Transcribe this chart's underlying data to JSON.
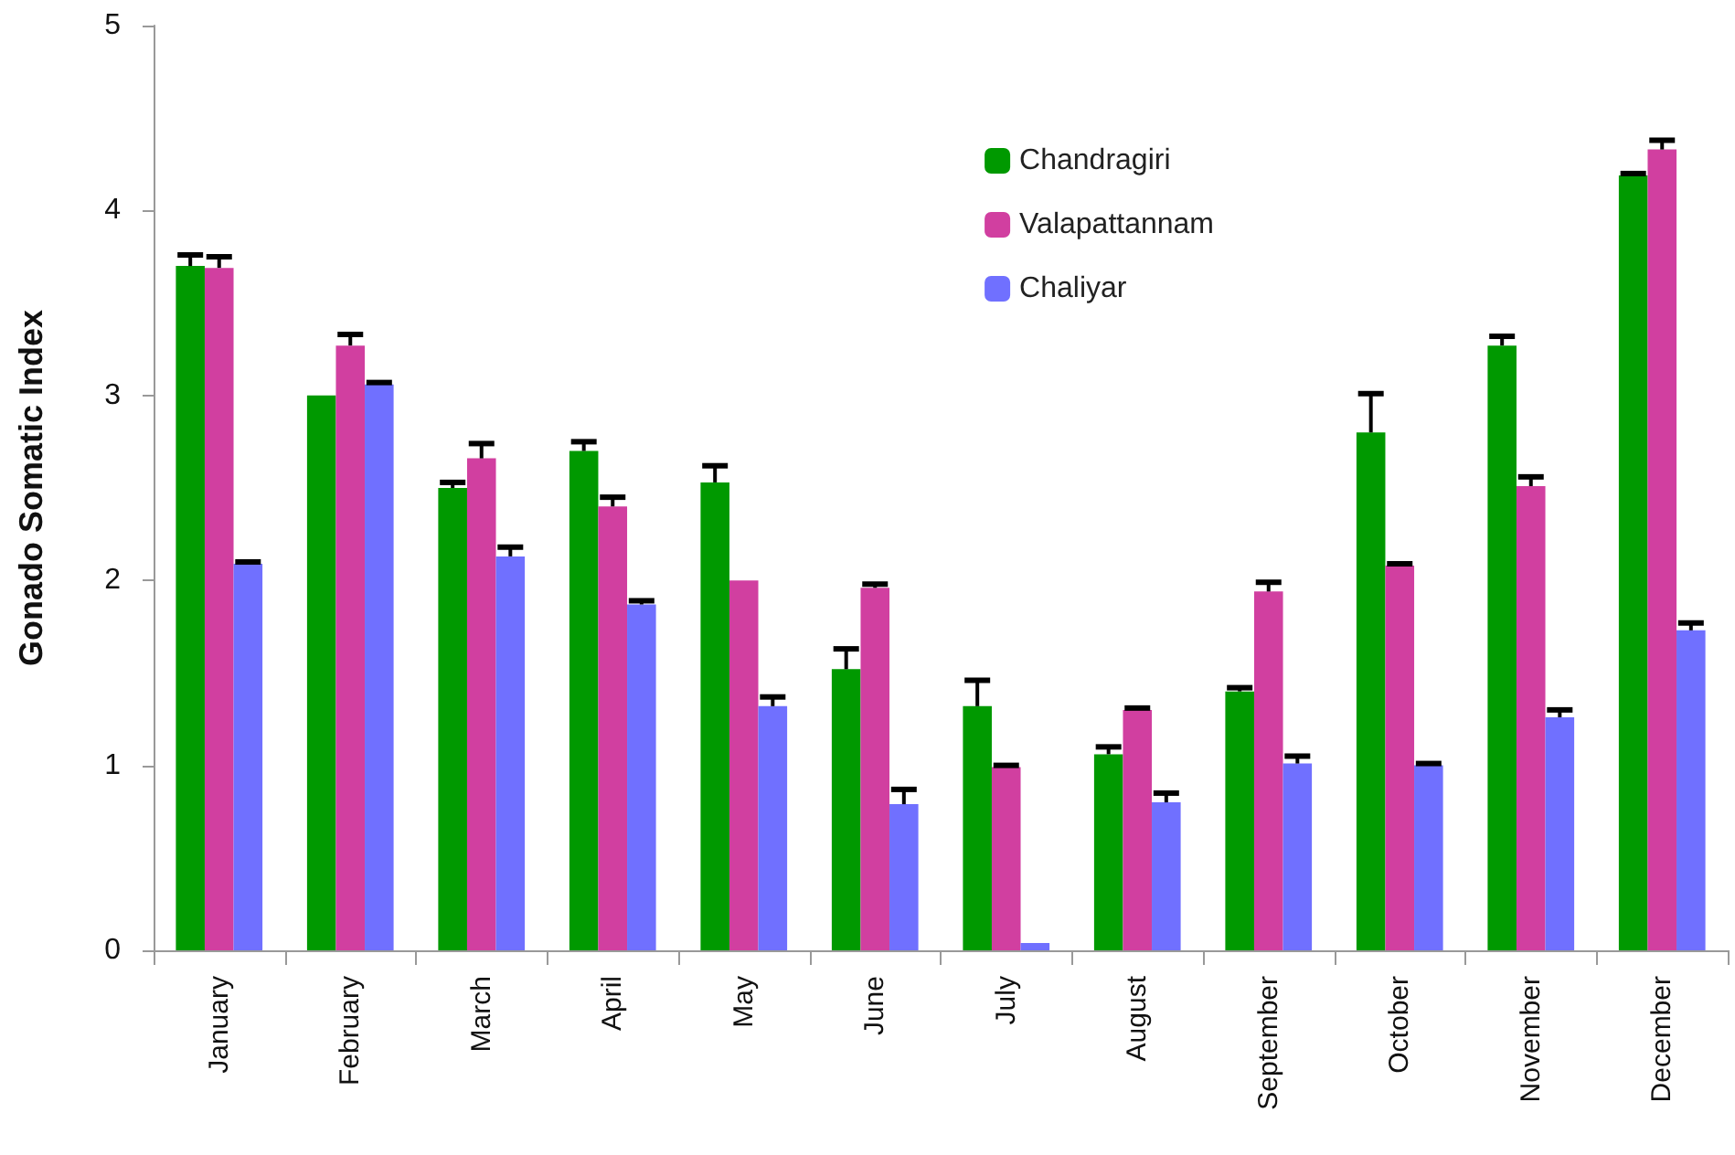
{
  "chart_data": {
    "type": "bar",
    "ylabel": "Gonado Somatic Index",
    "categories": [
      "January",
      "February",
      "March",
      "April",
      "May",
      "June",
      "July",
      "August",
      "September",
      "October",
      "November",
      "December"
    ],
    "series": [
      {
        "name": "Chandragiri",
        "color": "#009900",
        "values": [
          3.7,
          3.0,
          2.5,
          2.7,
          2.53,
          1.52,
          1.32,
          1.06,
          1.4,
          2.8,
          3.27,
          4.19
        ],
        "errors": [
          [
            3.7,
            3.76
          ],
          null,
          [
            2.5,
            2.53
          ],
          [
            2.7,
            2.75
          ],
          [
            2.53,
            2.62
          ],
          [
            1.52,
            1.63
          ],
          [
            1.32,
            1.46
          ],
          [
            1.06,
            1.1
          ],
          [
            1.4,
            1.42
          ],
          [
            2.8,
            3.01
          ],
          [
            3.27,
            3.32
          ],
          [
            4.19,
            4.2
          ]
        ]
      },
      {
        "name": "Valapattannam",
        "color": "#d13fa0",
        "values": [
          3.69,
          3.27,
          2.66,
          2.4,
          2.0,
          1.96,
          0.99,
          1.3,
          1.94,
          2.08,
          2.51,
          4.33
        ],
        "errors": [
          [
            3.69,
            3.75
          ],
          [
            3.27,
            3.33
          ],
          [
            2.66,
            2.74
          ],
          [
            2.4,
            2.45
          ],
          null,
          [
            1.96,
            1.98
          ],
          [
            0.99,
            1.0
          ],
          [
            1.3,
            1.31
          ],
          [
            1.94,
            1.99
          ],
          [
            2.08,
            2.09
          ],
          [
            2.51,
            2.56
          ],
          [
            4.33,
            4.38
          ]
        ]
      },
      {
        "name": "Chaliyar",
        "color": "#7070ff",
        "values": [
          2.09,
          3.06,
          2.13,
          1.87,
          1.32,
          0.79,
          0.04,
          0.8,
          1.01,
          1.0,
          1.26,
          1.73
        ],
        "errors": [
          [
            2.09,
            2.1
          ],
          [
            3.06,
            3.07
          ],
          [
            2.13,
            2.18
          ],
          [
            1.87,
            1.89
          ],
          [
            1.32,
            1.37
          ],
          [
            0.79,
            0.87
          ],
          null,
          [
            0.8,
            0.85
          ],
          [
            1.01,
            1.05
          ],
          [
            1.0,
            1.01
          ],
          [
            1.26,
            1.3
          ],
          [
            1.73,
            1.77
          ]
        ]
      }
    ],
    "ylim": [
      0,
      5
    ],
    "yticks": [
      0,
      1,
      2,
      3,
      4,
      5
    ],
    "grid": false,
    "legend": "top right"
  }
}
